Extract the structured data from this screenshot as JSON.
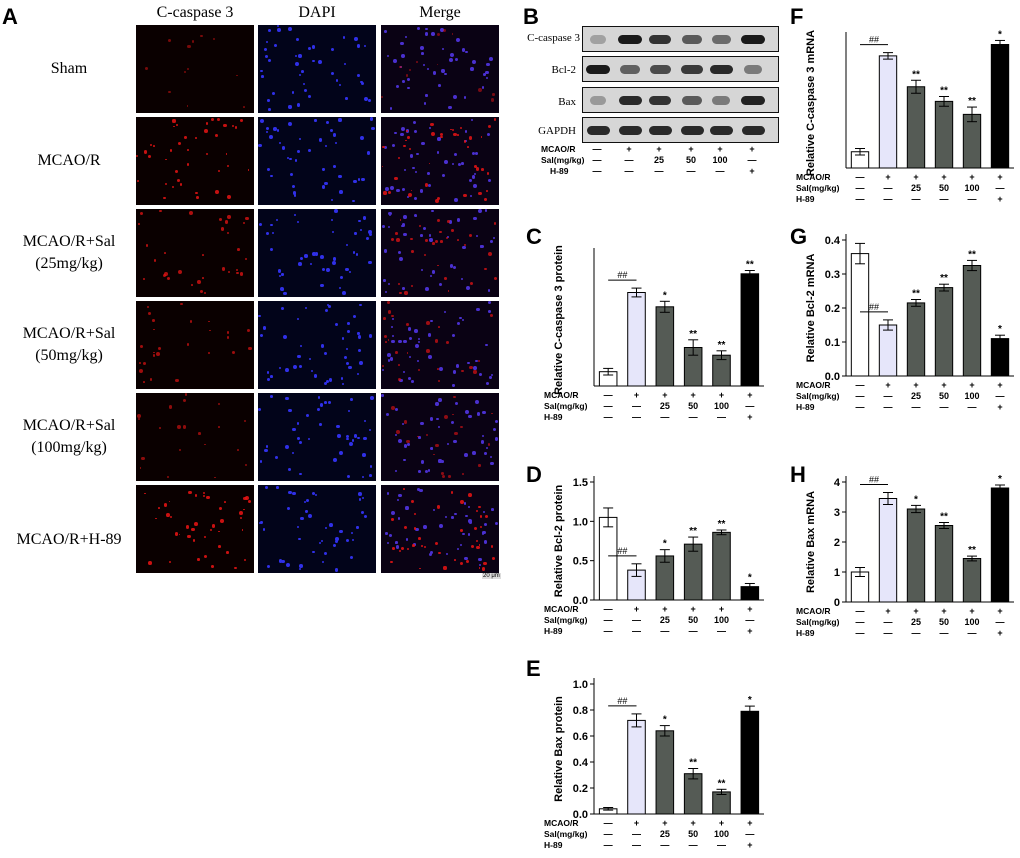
{
  "panels": {
    "A": "A",
    "B": "B",
    "C": "C",
    "D": "D",
    "E": "E",
    "F": "F",
    "G": "G",
    "H": "H"
  },
  "panel_a": {
    "columns": [
      "C-caspase 3",
      "DAPI",
      "Merge"
    ],
    "rows": [
      {
        "line1": "Sham",
        "line2": ""
      },
      {
        "line1": "MCAO/R",
        "line2": ""
      },
      {
        "line1": "MCAO/R+Sal",
        "line2": "(25mg/kg)"
      },
      {
        "line1": "MCAO/R+Sal",
        "line2": "(50mg/kg)"
      },
      {
        "line1": "MCAO/R+Sal",
        "line2": "(100mg/kg)"
      },
      {
        "line1": "MCAO/R+H-89",
        "line2": ""
      }
    ],
    "red_intensity": [
      0.1,
      0.8,
      0.6,
      0.45,
      0.3,
      0.85
    ],
    "scale_bar": "20 μm"
  },
  "panel_b": {
    "blots": [
      "C-caspase 3",
      "Bcl-2",
      "Bax",
      "GAPDH"
    ],
    "band_strength": [
      [
        0.15,
        1.0,
        0.85,
        0.6,
        0.5,
        1.0
      ],
      [
        1.0,
        0.55,
        0.7,
        0.8,
        0.9,
        0.4
      ],
      [
        0.2,
        0.9,
        0.85,
        0.6,
        0.4,
        0.95
      ],
      [
        0.9,
        0.9,
        0.9,
        0.9,
        0.9,
        0.9
      ]
    ],
    "treatment_rows": [
      {
        "label": "MCAO/R",
        "values": [
          "—",
          "+",
          "+",
          "+",
          "+",
          "+"
        ]
      },
      {
        "label": "Sal(mg/kg)",
        "values": [
          "—",
          "—",
          "25",
          "50",
          "100",
          "—"
        ]
      },
      {
        "label": "H-89",
        "values": [
          "—",
          "—",
          "—",
          "—",
          "—",
          "+"
        ]
      }
    ]
  },
  "treatment_table": [
    {
      "label": "MCAO/R",
      "values": [
        "—",
        "+",
        "+",
        "+",
        "+",
        "+"
      ]
    },
    {
      "label": "Sal(mg/kg)",
      "values": [
        "—",
        "—",
        "25",
        "50",
        "100",
        "—"
      ]
    },
    {
      "label": "H-89",
      "values": [
        "—",
        "—",
        "—",
        "—",
        "—",
        "+"
      ]
    }
  ],
  "colors": {
    "sham": "#ffffff",
    "mcao": "#e6e6fa",
    "sal": "#555b55",
    "h89": "#000000"
  },
  "chart_data": [
    {
      "panel": "C",
      "type": "bar",
      "ylabel": "Relative C-caspase 3 protein",
      "ylim": [
        0,
        1.2
      ],
      "yticks": [],
      "values": [
        0.13,
        0.85,
        0.72,
        0.35,
        0.28,
        1.02
      ],
      "errors": [
        0.03,
        0.04,
        0.05,
        0.07,
        0.04,
        0.03
      ],
      "marks": [
        "",
        "##",
        "*",
        "**",
        "**",
        "**"
      ]
    },
    {
      "panel": "D",
      "type": "bar",
      "ylabel": "Relative Bcl-2 protein",
      "ylim": [
        0,
        1.5
      ],
      "yticks": [
        "0.0",
        "0.5",
        "1.0",
        "1.5"
      ],
      "values": [
        1.05,
        0.38,
        0.56,
        0.71,
        0.86,
        0.17
      ],
      "errors": [
        0.12,
        0.08,
        0.08,
        0.09,
        0.03,
        0.04
      ],
      "marks": [
        "",
        "##",
        "*",
        "**",
        "**",
        "*"
      ]
    },
    {
      "panel": "E",
      "type": "bar",
      "ylabel": "Relative Bax protein",
      "ylim": [
        0,
        1.0
      ],
      "yticks": [
        "0.0",
        "0.2",
        "0.4",
        "0.6",
        "0.8",
        "1.0"
      ],
      "values": [
        0.04,
        0.72,
        0.64,
        0.31,
        0.17,
        0.79
      ],
      "errors": [
        0.01,
        0.05,
        0.04,
        0.04,
        0.02,
        0.04
      ],
      "marks": [
        "",
        "##",
        "*",
        "**",
        "**",
        "*"
      ]
    },
    {
      "panel": "F",
      "type": "bar",
      "ylabel": "Relative C-caspase 3 mRNA",
      "ylim": [
        0,
        8
      ],
      "yticks": [],
      "values": [
        1.0,
        6.9,
        5.0,
        4.1,
        3.3,
        7.6
      ],
      "errors": [
        0.2,
        0.2,
        0.4,
        0.3,
        0.45,
        0.25
      ],
      "marks": [
        "",
        "##",
        "**",
        "**",
        "**",
        "*"
      ]
    },
    {
      "panel": "G",
      "type": "bar",
      "ylabel": "Relative Bcl-2 mRNA",
      "ylim": [
        0,
        0.4
      ],
      "yticks": [
        "0.0",
        "0.1",
        "0.2",
        "0.3",
        "0.4"
      ],
      "values": [
        0.36,
        0.15,
        0.215,
        0.26,
        0.325,
        0.11
      ],
      "errors": [
        0.03,
        0.015,
        0.01,
        0.01,
        0.015,
        0.01
      ],
      "marks": [
        "",
        "##",
        "**",
        "**",
        "**",
        "*"
      ]
    },
    {
      "panel": "H",
      "type": "bar",
      "ylabel": "Relative Bax mRNA",
      "ylim": [
        0,
        4
      ],
      "yticks": [
        "0",
        "1",
        "2",
        "3",
        "4"
      ],
      "values": [
        1.0,
        3.45,
        3.1,
        2.55,
        1.45,
        3.8
      ],
      "errors": [
        0.15,
        0.2,
        0.12,
        0.1,
        0.08,
        0.1
      ],
      "marks": [
        "",
        "##",
        "*",
        "**",
        "**",
        "*"
      ]
    }
  ]
}
